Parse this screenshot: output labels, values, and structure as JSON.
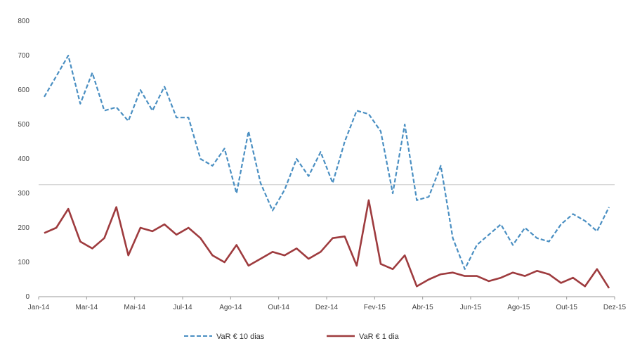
{
  "chart_data": {
    "type": "line",
    "title": "",
    "xlabel": "",
    "ylabel": "",
    "ylim": [
      0,
      800
    ],
    "yticks": [
      "0",
      "100",
      "200",
      "300",
      "400",
      "500",
      "600",
      "700",
      "800"
    ],
    "xticks": [
      "Jan-14",
      "Mar-14",
      "Mai-14",
      "Jul-14",
      "Ago-14",
      "Out-14",
      "Dez-14",
      "Fev-15",
      "Abr-15",
      "Jun-15",
      "Ago-15",
      "Out-15",
      "Dez-15"
    ],
    "reference_line": 325,
    "grid": false,
    "legend_position": "bottom",
    "series": [
      {
        "name": "VaR € 10 dias",
        "color": "#4a8fc2",
        "style": "dashed",
        "x": [
          "Jan-14",
          "Jan-14",
          "Fev-14",
          "Fev-14",
          "Mar-14",
          "Mar-14",
          "Abr-14",
          "Abr-14",
          "Mai-14",
          "Mai-14",
          "Jun-14",
          "Jun-14",
          "Jul-14",
          "Jul-14",
          "Ago-14",
          "Ago-14",
          "Set-14",
          "Set-14",
          "Out-14",
          "Out-14",
          "Nov-14",
          "Nov-14",
          "Dez-14",
          "Dez-14",
          "Jan-15",
          "Jan-15",
          "Fev-15",
          "Fev-15",
          "Mar-15",
          "Mar-15",
          "Abr-15",
          "Abr-15",
          "Mai-15",
          "Mai-15",
          "Jun-15",
          "Jun-15",
          "Jul-15",
          "Jul-15",
          "Ago-15",
          "Ago-15",
          "Set-15",
          "Set-15",
          "Out-15",
          "Out-15",
          "Nov-15",
          "Nov-15",
          "Dez-15",
          "Dez-15"
        ],
        "values": [
          580,
          640,
          700,
          560,
          650,
          540,
          550,
          510,
          600,
          540,
          610,
          520,
          520,
          400,
          380,
          430,
          300,
          480,
          330,
          250,
          310,
          400,
          350,
          420,
          330,
          450,
          540,
          530,
          480,
          300,
          500,
          280,
          290,
          380,
          170,
          80,
          150,
          180,
          210,
          150,
          200,
          170,
          160,
          210,
          240,
          220,
          190,
          260
        ]
      },
      {
        "name": "VaR € 1 dia",
        "color": "#9e3b3e",
        "style": "solid",
        "x": [
          "Jan-14",
          "Jan-14",
          "Fev-14",
          "Fev-14",
          "Mar-14",
          "Mar-14",
          "Abr-14",
          "Abr-14",
          "Mai-14",
          "Mai-14",
          "Jun-14",
          "Jun-14",
          "Jul-14",
          "Jul-14",
          "Ago-14",
          "Ago-14",
          "Set-14",
          "Set-14",
          "Out-14",
          "Out-14",
          "Nov-14",
          "Nov-14",
          "Dez-14",
          "Dez-14",
          "Jan-15",
          "Jan-15",
          "Fev-15",
          "Fev-15",
          "Mar-15",
          "Mar-15",
          "Abr-15",
          "Abr-15",
          "Mai-15",
          "Mai-15",
          "Jun-15",
          "Jun-15",
          "Jul-15",
          "Jul-15",
          "Ago-15",
          "Ago-15",
          "Set-15",
          "Set-15",
          "Out-15",
          "Out-15",
          "Nov-15",
          "Nov-15",
          "Dez-15",
          "Dez-15"
        ],
        "values": [
          185,
          200,
          255,
          160,
          140,
          170,
          260,
          120,
          200,
          190,
          210,
          180,
          200,
          170,
          120,
          100,
          150,
          90,
          110,
          130,
          120,
          140,
          110,
          130,
          170,
          175,
          90,
          280,
          95,
          80,
          120,
          30,
          50,
          65,
          70,
          60,
          60,
          45,
          55,
          70,
          60,
          75,
          65,
          40,
          55,
          30,
          80,
          25
        ]
      }
    ]
  }
}
